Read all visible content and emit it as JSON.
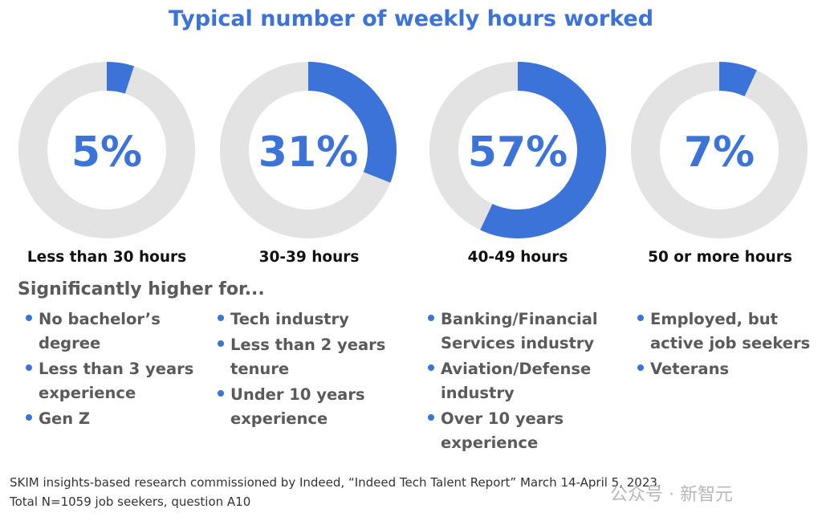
{
  "chart_data": {
    "type": "pie",
    "title": "Typical number of weekly hours worked",
    "categories": [
      "Less than 30 hours",
      "30-39 hours",
      "40-49 hours",
      "50 or more hours"
    ],
    "values": [
      5,
      31,
      57,
      7
    ],
    "value_labels": [
      "5%",
      "31%",
      "57%",
      "7%"
    ],
    "style": "donut",
    "colors": {
      "filled": "#3b73d9",
      "remaining": "#e3e3e3"
    }
  },
  "subheading": "Significantly higher for...",
  "groups": [
    {
      "items": [
        "No bachelor’s degree",
        "Less than 3 years experience",
        "Gen Z"
      ]
    },
    {
      "items": [
        "Tech industry",
        "Less than 2 years tenure",
        "Under 10 years experience"
      ]
    },
    {
      "items": [
        "Banking/Financial Services industry",
        "Aviation/Defense industry",
        "Over 10 years experience"
      ]
    },
    {
      "items": [
        "Employed, but active job seekers",
        "Veterans"
      ]
    }
  ],
  "source": {
    "line1": "SKIM insights-based research commissioned by Indeed, “Indeed Tech Talent Report” March 14-April 5, 2023,",
    "line2": "Total N=1059 job seekers, question A10"
  },
  "watermark": "公众号 · 新智元"
}
